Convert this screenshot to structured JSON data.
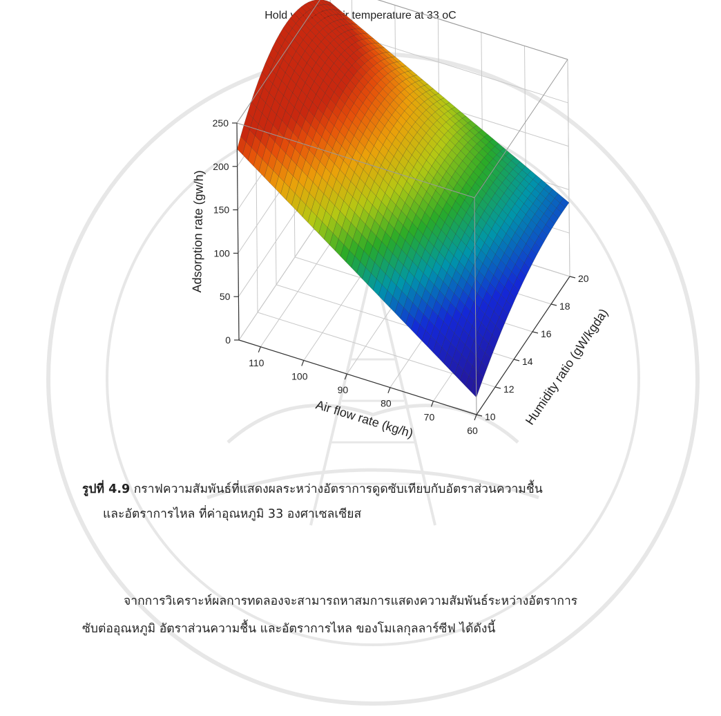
{
  "chart_data": {
    "type": "surface",
    "title": "Hold value for Air temperature at 33 oC",
    "xlabel": "Air flow rate (kg/h)",
    "ylabel": "Humidity ratio (gW/kgda)",
    "zlabel": "Adsorption rate (gw/h)",
    "xlim": [
      60,
      115
    ],
    "ylim": [
      10,
      20
    ],
    "zlim": [
      0,
      250
    ],
    "xticks": [
      110,
      100,
      90,
      80,
      70,
      60
    ],
    "yticks": [
      10,
      12,
      14,
      16,
      18,
      20
    ],
    "zticks": [
      0,
      50,
      100,
      150,
      200,
      250
    ],
    "colormap": "jet (red high, blue low)",
    "corners": [
      {
        "x": 115,
        "y": 10,
        "z": 220
      },
      {
        "x": 115,
        "y": 20,
        "z": 230
      },
      {
        "x": 60,
        "y": 10,
        "z": 20
      },
      {
        "x": 60,
        "y": 20,
        "z": 85
      }
    ],
    "grid": true
  },
  "caption": {
    "label": "รูปที่ 4.9",
    "line1": " กราฟความสัมพันธ์ที่แสดงผลระหว่างอัตราการดูดซับเทียบกับอัตราส่วนความชื้น",
    "line2": "และอัตราการไหล ที่ค่าอุณหภูมิ 33 องศาเซลเซียส"
  },
  "paragraph": {
    "line1": "จากการวิเคราะห์ผลการทดลองจะสามารถหาสมการแสดงความสัมพันธ์ระหว่างอัตราการ",
    "line2": "ซับต่ออุณหภูมิ อัตราส่วนความชื้น และอัตราการไหล ของโมเลกุลลาร์ซีฟ ได้ดังนี้"
  }
}
